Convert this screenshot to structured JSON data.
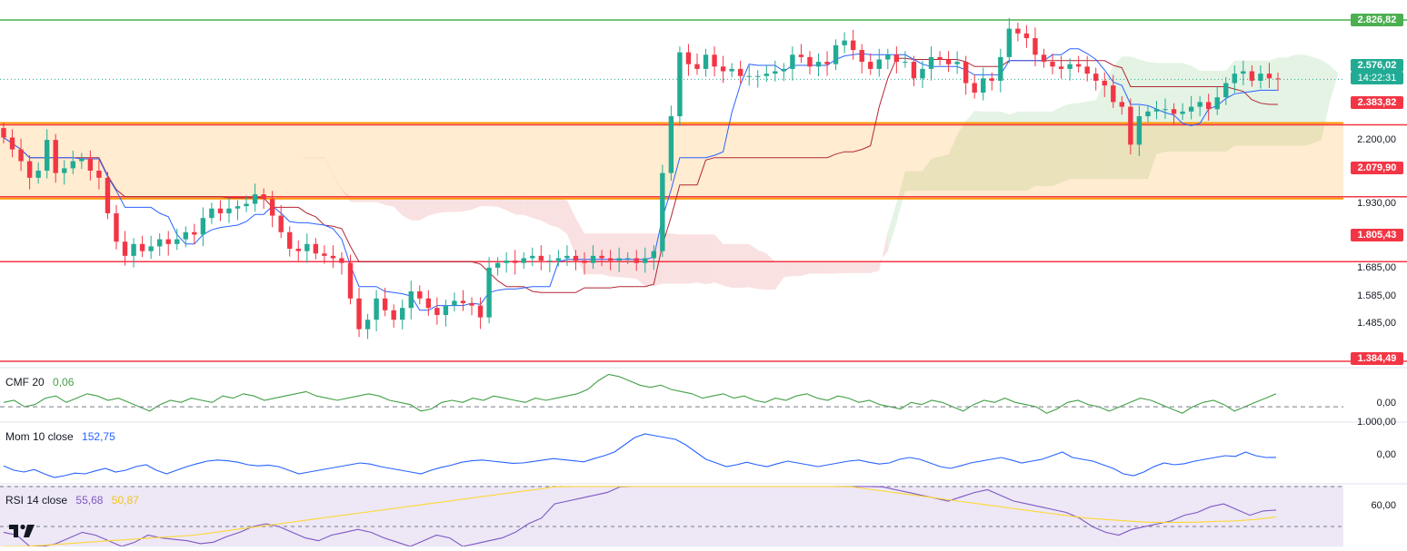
{
  "chart_data": [
    {
      "type": "candlestick",
      "name": "price",
      "y_ticks": [
        "2.200,00",
        "1.930,00",
        "1.685,00",
        "1.585,00",
        "1.485,00"
      ],
      "y_ticks_values": [
        2200,
        1930,
        1685,
        1585,
        1485
      ],
      "horizontal_levels": [
        {
          "label": "2.826,82",
          "value": 2826.82,
          "color": "#4caf50"
        },
        {
          "label": "2.383,82",
          "value": 2383.82,
          "color": "#f23645"
        },
        {
          "label": "2.079,90",
          "value": 2079.9,
          "color": "#f23645"
        },
        {
          "label": "1.805,43",
          "value": 1805.43,
          "color": "#f23645"
        },
        {
          "label": "1.384,49",
          "value": 1384.49,
          "color": "#f23645"
        }
      ],
      "last_price": {
        "label": "2.576,02",
        "countdown": "14:22:31",
        "value": 2576.02,
        "color": "#22ab94"
      },
      "close": [
        2330,
        2280,
        2230,
        2160,
        2190,
        2320,
        2180,
        2200,
        2230,
        2240,
        2190,
        2160,
        2010,
        1890,
        1830,
        1880,
        1850,
        1870,
        1900,
        1880,
        1900,
        1930,
        1920,
        1990,
        2030,
        2010,
        2030,
        2040,
        2050,
        2090,
        2070,
        2000,
        1930,
        1860,
        1850,
        1880,
        1840,
        1830,
        1820,
        1800,
        1650,
        1520,
        1560,
        1650,
        1600,
        1560,
        1610,
        1680,
        1650,
        1610,
        1580,
        1620,
        1640,
        1630,
        1620,
        1570,
        1780,
        1800,
        1810,
        1800,
        1820,
        1830,
        1810,
        1810,
        1820,
        1830,
        1810,
        1800,
        1830,
        1820,
        1810,
        1820,
        1820,
        1800,
        1820,
        1850,
        2180,
        2420,
        2690,
        2640,
        2620,
        2680,
        2630,
        2610,
        2620,
        2590,
        2590,
        2590,
        2600,
        2610,
        2620,
        2680,
        2670,
        2630,
        2650,
        2640,
        2720,
        2740,
        2700,
        2650,
        2620,
        2660,
        2680,
        2650,
        2650,
        2580,
        2620,
        2670,
        2660,
        2640,
        2650,
        2560,
        2520,
        2580,
        2570,
        2670,
        2790,
        2770,
        2750,
        2680,
        2650,
        2630,
        2620,
        2640,
        2630,
        2600,
        2570,
        2550,
        2480,
        2460,
        2300,
        2420,
        2440,
        2450,
        2450,
        2430,
        2440,
        2460,
        2480,
        2450,
        2500,
        2560,
        2600,
        2610,
        2570,
        2600,
        2580,
        2576
      ]
    },
    {
      "type": "line",
      "name": "CMF 20",
      "value_label": "0,06",
      "y_ticks": [
        "0,00"
      ],
      "values": [
        0.02,
        0.03,
        0.0,
        0.01,
        0.04,
        0.05,
        0.02,
        0.04,
        0.06,
        0.05,
        0.03,
        0.04,
        0.02,
        0.0,
        -0.02,
        0.01,
        0.03,
        0.02,
        0.04,
        0.03,
        0.02,
        0.05,
        0.04,
        0.06,
        0.05,
        0.03,
        0.04,
        0.05,
        0.06,
        0.07,
        0.05,
        0.04,
        0.03,
        0.04,
        0.05,
        0.06,
        0.05,
        0.03,
        0.02,
        0.01,
        -0.02,
        -0.01,
        0.02,
        0.03,
        0.02,
        0.04,
        0.03,
        0.05,
        0.04,
        0.03,
        0.02,
        0.04,
        0.03,
        0.04,
        0.05,
        0.06,
        0.08,
        0.12,
        0.15,
        0.14,
        0.12,
        0.1,
        0.09,
        0.1,
        0.08,
        0.07,
        0.06,
        0.04,
        0.05,
        0.06,
        0.04,
        0.05,
        0.03,
        0.02,
        0.04,
        0.03,
        0.05,
        0.06,
        0.04,
        0.03,
        0.05,
        0.04,
        0.02,
        0.03,
        0.01,
        0.0,
        -0.01,
        0.02,
        0.01,
        0.03,
        0.02,
        0.0,
        -0.02,
        0.01,
        0.03,
        0.02,
        0.04,
        0.02,
        0.01,
        0.0,
        -0.03,
        -0.01,
        0.02,
        0.03,
        0.01,
        0.0,
        -0.02,
        0.0,
        0.02,
        0.04,
        0.03,
        0.01,
        -0.01,
        -0.03,
        0.0,
        0.02,
        0.03,
        0.01,
        -0.02,
        0.0,
        0.02,
        0.04,
        0.06
      ]
    },
    {
      "type": "line",
      "name": "Mom 10 close",
      "value_label": "152,75",
      "y_ticks": [
        "1.000,00",
        "0,00"
      ],
      "values": [
        -80,
        -200,
        -250,
        -180,
        -300,
        -400,
        -350,
        -280,
        -300,
        -220,
        -150,
        -250,
        -200,
        -100,
        -50,
        -200,
        -300,
        -200,
        -100,
        -20,
        50,
        80,
        60,
        20,
        -50,
        -80,
        -60,
        -100,
        -200,
        -300,
        -250,
        -200,
        -150,
        -100,
        -50,
        0,
        -30,
        -100,
        -150,
        -200,
        -250,
        -300,
        -200,
        -120,
        -60,
        20,
        60,
        80,
        50,
        20,
        -10,
        0,
        40,
        80,
        120,
        90,
        60,
        30,
        120,
        200,
        300,
        500,
        700,
        800,
        750,
        700,
        650,
        500,
        300,
        100,
        0,
        -100,
        -50,
        20,
        -50,
        -100,
        -20,
        50,
        0,
        -50,
        -100,
        -50,
        0,
        50,
        80,
        20,
        -30,
        0,
        100,
        150,
        100,
        0,
        -100,
        -150,
        -80,
        0,
        50,
        100,
        150,
        80,
        0,
        50,
        100,
        200,
        300,
        150,
        100,
        50,
        -50,
        -150,
        -300,
        -350,
        -250,
        -100,
        0,
        -50,
        -20,
        50,
        100,
        150,
        200,
        180,
        300,
        200,
        150,
        152.75
      ]
    },
    {
      "type": "line",
      "name": "RSI 14 close",
      "values_label": "55,68",
      "ma_label": "50,87",
      "y_ticks": [
        "60,00"
      ],
      "values": [
        40,
        38,
        30,
        28,
        32,
        36,
        40,
        38,
        34,
        30,
        33,
        38,
        36,
        35,
        34,
        32,
        33,
        37,
        40,
        44,
        46,
        44,
        40,
        36,
        34,
        38,
        40,
        42,
        40,
        36,
        33,
        30,
        34,
        38,
        36,
        30,
        32,
        34,
        36,
        40,
        46,
        50,
        60,
        62,
        64,
        66,
        68,
        72,
        76,
        78,
        80,
        82,
        84,
        86,
        85,
        82,
        80,
        79,
        82,
        84,
        86,
        84,
        80,
        82,
        78,
        75,
        76,
        72,
        70,
        68,
        66,
        64,
        62,
        65,
        68,
        70,
        66,
        62,
        60,
        58,
        56,
        54,
        50,
        44,
        40,
        38,
        42,
        44,
        46,
        48,
        52,
        54,
        58,
        60,
        56,
        52,
        55,
        55.68
      ],
      "ma_values": [
        30,
        30,
        31,
        32,
        33,
        34,
        35,
        36,
        37,
        38,
        40,
        42,
        44,
        46,
        48,
        50,
        52,
        54,
        56,
        58,
        60,
        62,
        64,
        66,
        68,
        70,
        72,
        74,
        76,
        78,
        79,
        80,
        80,
        80,
        79,
        78,
        77,
        76,
        75,
        74,
        72,
        70,
        68,
        66,
        64,
        62,
        60,
        58,
        56,
        54,
        52,
        50,
        49,
        48,
        47,
        47,
        47,
        47.5,
        48,
        49,
        50.87
      ]
    }
  ],
  "pane_cmf": {
    "name": "CMF 20",
    "value": "0,06"
  },
  "pane_mom": {
    "name": "Mom 10 close",
    "value": "152,75"
  },
  "pane_rsi": {
    "name": "RSI 14 close",
    "value": "55,68",
    "ma_value": "50,87"
  },
  "colors": {
    "up": "#22ab94",
    "down": "#f23645",
    "tenkan": "#2962ff",
    "kijun": "#b22833",
    "cloud_bull": "#a5d6a7",
    "cloud_bear": "#ef9a9a",
    "band": "#ff9800",
    "cmf": "#43a047",
    "mom": "#2962ff",
    "rsi": "#7e57c2",
    "rsi_ma": "#fdd835"
  },
  "brand": {
    "logo_icon": "tradingview-logo"
  }
}
